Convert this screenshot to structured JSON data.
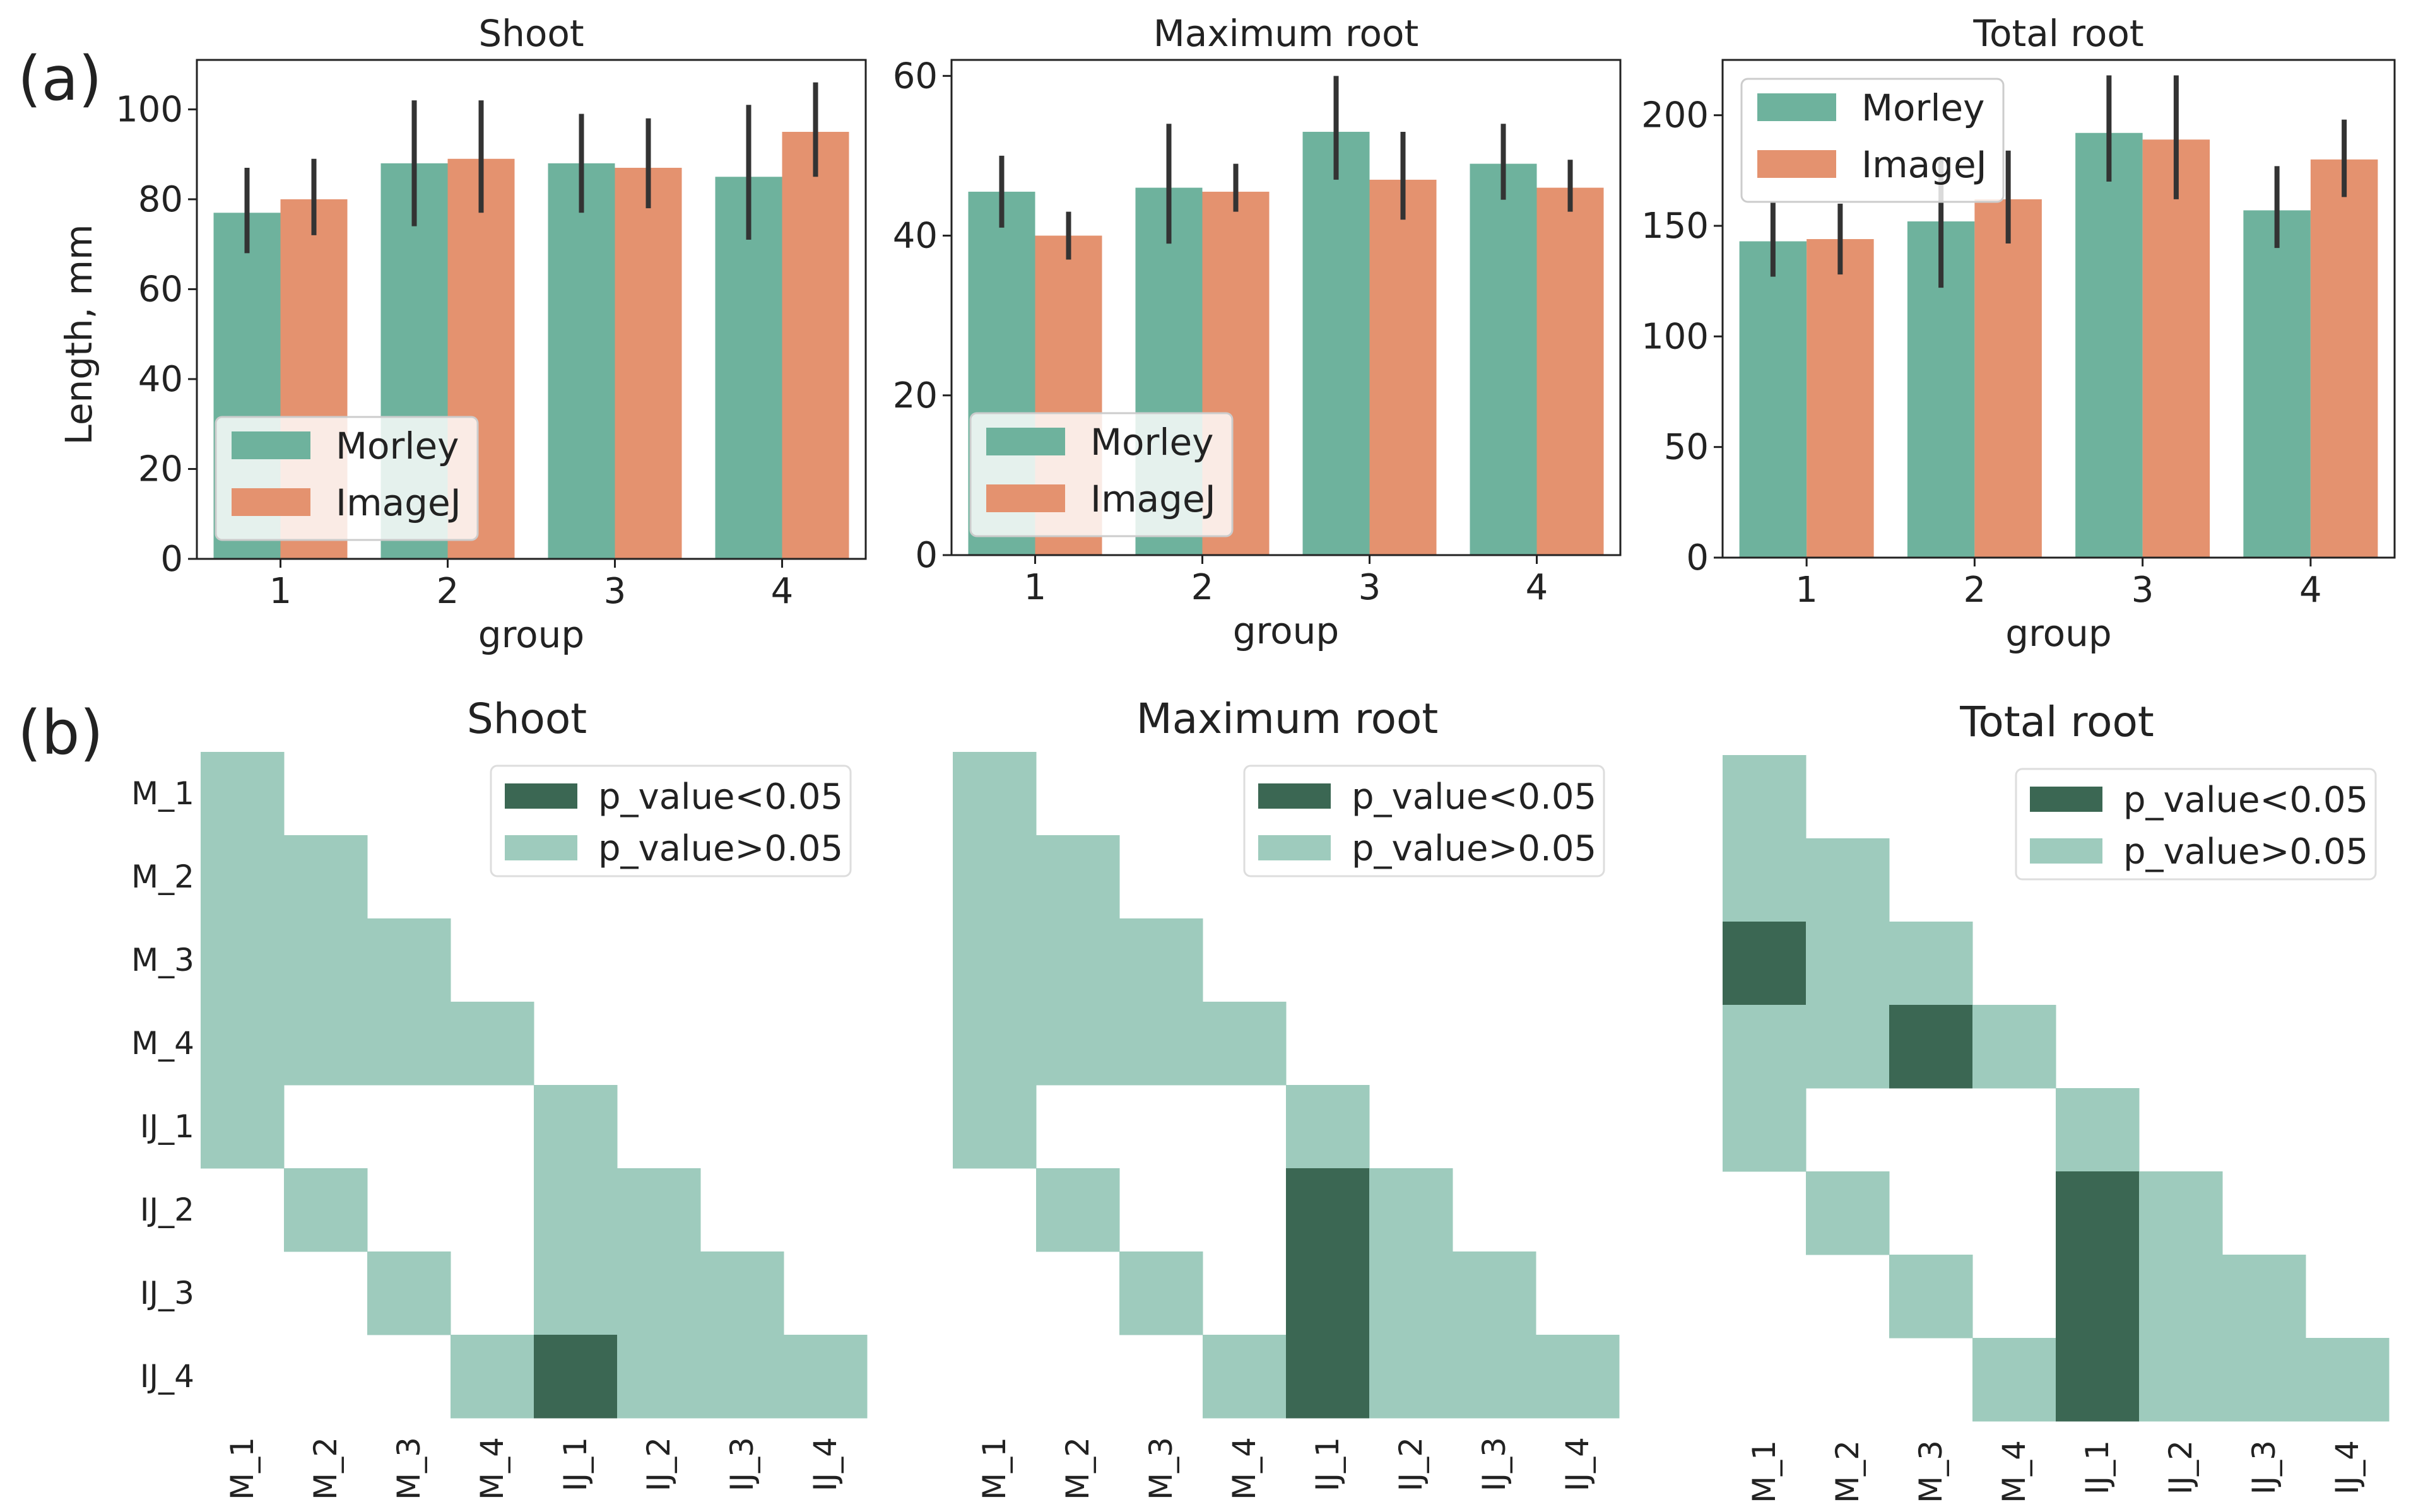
{
  "figure": {
    "panel_a_label": "(a)",
    "panel_b_label": "(b)"
  },
  "colors": {
    "morley": "#6eb29d",
    "imagej": "#e4926f",
    "errorbar": "#333333",
    "sig": "#3b6753",
    "nonsig": "#9ecbbd"
  },
  "chart_data": [
    {
      "type": "bar",
      "title": "Shoot",
      "xlabel": "group",
      "ylabel": "Length, mm",
      "categories": [
        "1",
        "2",
        "3",
        "4"
      ],
      "ylim": [
        0,
        111
      ],
      "yticks": [
        0,
        20,
        40,
        60,
        80,
        100
      ],
      "legend_position": "lower-left",
      "series": [
        {
          "name": "Morley",
          "values": [
            77,
            88,
            88,
            85
          ],
          "err_low": [
            68,
            74,
            77,
            71
          ],
          "err_high": [
            87,
            102,
            99,
            101
          ]
        },
        {
          "name": "ImageJ",
          "values": [
            80,
            89,
            87,
            95
          ],
          "err_low": [
            72,
            77,
            78,
            85
          ],
          "err_high": [
            89,
            102,
            98,
            106
          ]
        }
      ]
    },
    {
      "type": "bar",
      "title": "Maximum root",
      "xlabel": "group",
      "ylabel": "",
      "categories": [
        "1",
        "2",
        "3",
        "4"
      ],
      "ylim": [
        0,
        62
      ],
      "yticks": [
        0,
        20,
        40,
        60
      ],
      "legend_position": "lower-left",
      "series": [
        {
          "name": "Morley",
          "values": [
            45.5,
            46,
            53,
            49
          ],
          "err_low": [
            41,
            39,
            47,
            44.5
          ],
          "err_high": [
            50,
            54,
            60,
            54
          ]
        },
        {
          "name": "ImageJ",
          "values": [
            40,
            45.5,
            47,
            46
          ],
          "err_low": [
            37,
            43,
            42,
            43
          ],
          "err_high": [
            43,
            49,
            53,
            49.5
          ]
        }
      ]
    },
    {
      "type": "bar",
      "title": "Total root",
      "xlabel": "group",
      "ylabel": "",
      "categories": [
        "1",
        "2",
        "3",
        "4"
      ],
      "ylim": [
        0,
        225
      ],
      "yticks": [
        0,
        50,
        100,
        150,
        200
      ],
      "legend_position": "upper-left",
      "series": [
        {
          "name": "Morley",
          "values": [
            143,
            152,
            192,
            157
          ],
          "err_low": [
            127,
            122,
            170,
            140
          ],
          "err_high": [
            161,
            180,
            218,
            177
          ]
        },
        {
          "name": "ImageJ",
          "values": [
            144,
            162,
            189,
            180
          ],
          "err_low": [
            128,
            142,
            162,
            163
          ],
          "err_high": [
            160,
            184,
            218,
            198
          ]
        }
      ]
    },
    {
      "type": "heatmap",
      "title": "Shoot",
      "row_labels": [
        "M_1",
        "M_2",
        "M_3",
        "M_4",
        "IJ_1",
        "IJ_2",
        "IJ_3",
        "IJ_4"
      ],
      "col_labels": [
        "M_1",
        "M_2",
        "M_3",
        "M_4",
        "IJ_1",
        "IJ_2",
        "IJ_3",
        "IJ_4"
      ],
      "legend": [
        "p_value<0.05",
        "p_value>0.05"
      ],
      "matrix": [
        [
          1,
          null,
          null,
          null,
          null,
          null,
          null,
          null
        ],
        [
          1,
          1,
          null,
          null,
          null,
          null,
          null,
          null
        ],
        [
          1,
          1,
          1,
          null,
          null,
          null,
          null,
          null
        ],
        [
          1,
          1,
          1,
          1,
          null,
          null,
          null,
          null
        ],
        [
          1,
          null,
          null,
          null,
          1,
          null,
          null,
          null
        ],
        [
          null,
          1,
          null,
          null,
          1,
          1,
          null,
          null
        ],
        [
          null,
          null,
          1,
          null,
          1,
          1,
          1,
          null
        ],
        [
          null,
          null,
          null,
          1,
          2,
          1,
          1,
          1
        ]
      ]
    },
    {
      "type": "heatmap",
      "title": "Maximum root",
      "row_labels": [
        "M_1",
        "M_2",
        "M_3",
        "M_4",
        "IJ_1",
        "IJ_2",
        "IJ_3",
        "IJ_4"
      ],
      "col_labels": [
        "M_1",
        "M_2",
        "M_3",
        "M_4",
        "IJ_1",
        "IJ_2",
        "IJ_3",
        "IJ_4"
      ],
      "legend": [
        "p_value<0.05",
        "p_value>0.05"
      ],
      "matrix": [
        [
          1,
          null,
          null,
          null,
          null,
          null,
          null,
          null
        ],
        [
          1,
          1,
          null,
          null,
          null,
          null,
          null,
          null
        ],
        [
          1,
          1,
          1,
          null,
          null,
          null,
          null,
          null
        ],
        [
          1,
          1,
          1,
          1,
          null,
          null,
          null,
          null
        ],
        [
          1,
          null,
          null,
          null,
          1,
          null,
          null,
          null
        ],
        [
          null,
          1,
          null,
          null,
          2,
          1,
          null,
          null
        ],
        [
          null,
          null,
          1,
          null,
          2,
          1,
          1,
          null
        ],
        [
          null,
          null,
          null,
          1,
          2,
          1,
          1,
          1
        ]
      ]
    },
    {
      "type": "heatmap",
      "title": "Total root",
      "row_labels": [
        "M_1",
        "M_2",
        "M_3",
        "M_4",
        "IJ_1",
        "IJ_2",
        "IJ_3",
        "IJ_4"
      ],
      "col_labels": [
        "M_1",
        "M_2",
        "M_3",
        "M_4",
        "IJ_1",
        "IJ_2",
        "IJ_3",
        "IJ_4"
      ],
      "legend": [
        "p_value<0.05",
        "p_value>0.05"
      ],
      "matrix": [
        [
          1,
          null,
          null,
          null,
          null,
          null,
          null,
          null
        ],
        [
          1,
          1,
          null,
          null,
          null,
          null,
          null,
          null
        ],
        [
          2,
          1,
          1,
          null,
          null,
          null,
          null,
          null
        ],
        [
          1,
          1,
          2,
          1,
          null,
          null,
          null,
          null
        ],
        [
          1,
          null,
          null,
          null,
          1,
          null,
          null,
          null
        ],
        [
          null,
          1,
          null,
          null,
          2,
          1,
          null,
          null
        ],
        [
          null,
          null,
          1,
          null,
          2,
          1,
          1,
          null
        ],
        [
          null,
          null,
          null,
          1,
          2,
          1,
          1,
          1
        ]
      ]
    }
  ]
}
